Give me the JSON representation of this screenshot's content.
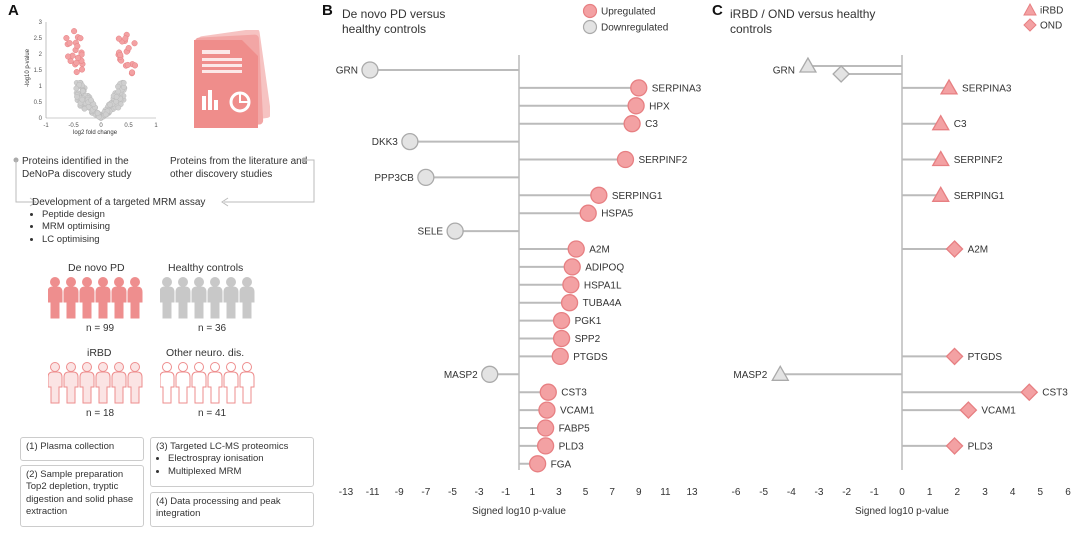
{
  "panels": {
    "a": "A",
    "b": "B",
    "c": "C"
  },
  "colors": {
    "up": "#f3a1a3",
    "up_stroke": "#e77f82",
    "down": "#e3e3e3",
    "down_stroke": "#aaaaaa",
    "line": "#bbbbbb",
    "person_red": "#ee8e8e",
    "person_grey": "#c8c8c8"
  },
  "panel_a": {
    "volcano": {
      "ylabel": "-log10 p-value",
      "xlabel": "log2 fold change",
      "yticks": [
        "0",
        "0.5",
        "1",
        "1.5",
        "2",
        "2.5",
        "3"
      ],
      "xticks": [
        "-1",
        "-0.5",
        "0",
        "0.5",
        "1"
      ]
    },
    "proteins_discovery": "Proteins identified in the DeNoPa discovery study",
    "proteins_literature": "Proteins from the literature and other discovery studies",
    "mrm_title": "Development of a targeted MRM assay",
    "mrm_items": [
      "Peptide design",
      "MRM optimising",
      "LC optimising"
    ],
    "groups": [
      {
        "name": "De novo PD",
        "n": "n = 99"
      },
      {
        "name": "Healthy controls",
        "n": "n = 36"
      },
      {
        "name": "iRBD",
        "n": "n = 18"
      },
      {
        "name": "Other neuro. dis.",
        "n": "n = 41"
      }
    ],
    "steps": {
      "s1": "(1) Plasma collection",
      "s2_title": "(2) Sample preparation",
      "s2_body": "Top2 depletion, tryptic digestion and solid phase extraction",
      "s3_title": "(3) Targeted LC-MS proteomics",
      "s3_items": [
        "Electrospray ionisation",
        "Multiplexed MRM"
      ],
      "s4": "(4) Data processing and peak integration"
    }
  },
  "chart_data": [
    {
      "type": "lollipop",
      "title": "De novo PD versus healthy controls",
      "xlabel": "Signed log10 p-value",
      "xlim": [
        -13,
        13
      ],
      "xticks": [
        -13,
        -11,
        -9,
        -7,
        -5,
        -3,
        -1,
        1,
        3,
        5,
        7,
        9,
        11,
        13
      ],
      "legend": [
        {
          "name": "Upregulated",
          "kind": "up"
        },
        {
          "name": "Downregulated",
          "kind": "down"
        }
      ],
      "points": [
        {
          "label": "GRN",
          "x": -11.2,
          "kind": "down"
        },
        {
          "label": "SERPINA3",
          "x": 9.0,
          "kind": "up"
        },
        {
          "label": "HPX",
          "x": 8.8,
          "kind": "up"
        },
        {
          "label": "C3",
          "x": 8.5,
          "kind": "up"
        },
        {
          "label": "DKK3",
          "x": -8.2,
          "kind": "down"
        },
        {
          "label": "SERPINF2",
          "x": 8.0,
          "kind": "up"
        },
        {
          "label": "PPP3CB",
          "x": -7.0,
          "kind": "down"
        },
        {
          "label": "SERPING1",
          "x": 6.0,
          "kind": "up"
        },
        {
          "label": "HSPA5",
          "x": 5.2,
          "kind": "up"
        },
        {
          "label": "SELE",
          "x": -4.8,
          "kind": "down"
        },
        {
          "label": "A2M",
          "x": 4.3,
          "kind": "up"
        },
        {
          "label": "ADIPOQ",
          "x": 4.0,
          "kind": "up"
        },
        {
          "label": "HSPA1L",
          "x": 3.9,
          "kind": "up"
        },
        {
          "label": "TUBA4A",
          "x": 3.8,
          "kind": "up"
        },
        {
          "label": "PGK1",
          "x": 3.2,
          "kind": "up"
        },
        {
          "label": "SPP2",
          "x": 3.2,
          "kind": "up"
        },
        {
          "label": "PTGDS",
          "x": 3.1,
          "kind": "up"
        },
        {
          "label": "MASP2",
          "x": -2.2,
          "kind": "down"
        },
        {
          "label": "CST3",
          "x": 2.2,
          "kind": "up"
        },
        {
          "label": "VCAM1",
          "x": 2.1,
          "kind": "up"
        },
        {
          "label": "FABP5",
          "x": 2.0,
          "kind": "up"
        },
        {
          "label": "PLD3",
          "x": 2.0,
          "kind": "up"
        },
        {
          "label": "FGA",
          "x": 1.4,
          "kind": "up"
        }
      ]
    },
    {
      "type": "lollipop",
      "title": "iRBD / OND versus healthy controls",
      "xlabel": "Signed log10 p-value",
      "xlim": [
        -6,
        6
      ],
      "xticks": [
        -6,
        -5,
        -4,
        -3,
        -2,
        -1,
        0,
        1,
        2,
        3,
        4,
        5,
        6
      ],
      "legend": [
        {
          "name": "iRBD",
          "kind": "tri"
        },
        {
          "name": "OND",
          "kind": "dia"
        }
      ],
      "points": [
        {
          "label": "GRN",
          "iRBD": -3.4,
          "OND": -2.2,
          "row": 0,
          "down": true
        },
        {
          "label": "SERPINA3",
          "iRBD": 1.7,
          "row": 1
        },
        {
          "label": "C3",
          "iRBD": 1.4,
          "row": 3
        },
        {
          "label": "SERPINF2",
          "iRBD": 1.4,
          "row": 5
        },
        {
          "label": "SERPING1",
          "iRBD": 1.4,
          "row": 7
        },
        {
          "label": "A2M",
          "OND": 1.9,
          "row": 10
        },
        {
          "label": "PTGDS",
          "OND": 1.9,
          "row": 16
        },
        {
          "label": "MASP2",
          "iRBD": -4.4,
          "row": 17,
          "down": true
        },
        {
          "label": "CST3",
          "OND": 4.6,
          "row": 18
        },
        {
          "label": "VCAM1",
          "OND": 2.4,
          "row": 19
        },
        {
          "label": "PLD3",
          "OND": 1.9,
          "row": 21
        }
      ]
    }
  ]
}
